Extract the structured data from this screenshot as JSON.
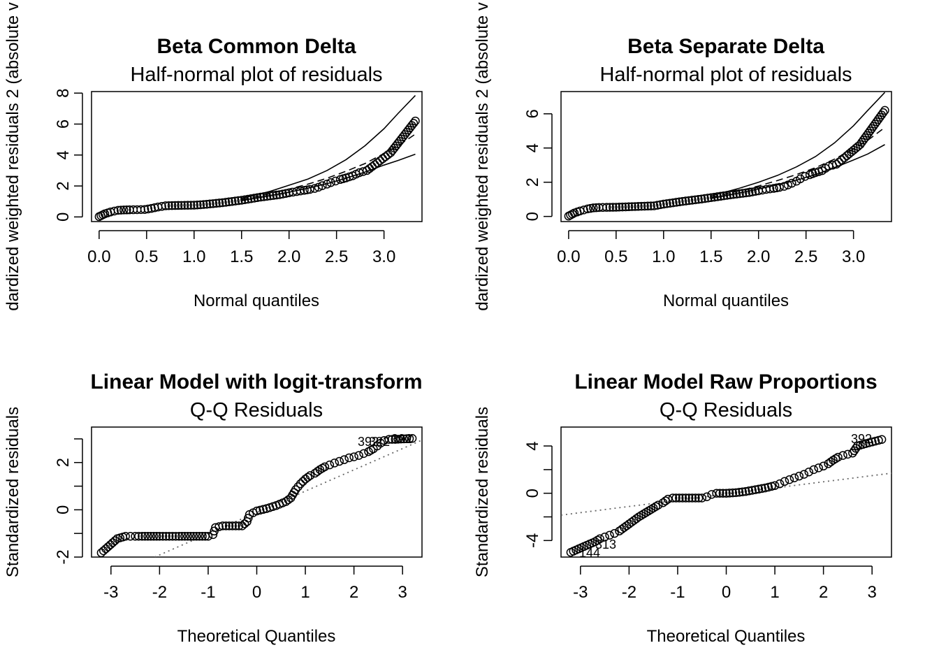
{
  "chart_data": [
    {
      "type": "scatter",
      "title": "Beta Common Delta",
      "subtitle": "Half-normal plot of residuals",
      "xlabel": "Normal quantiles",
      "ylabel": "dardized weighted residuals 2 (absolute v",
      "xlim": [
        -0.08,
        3.4
      ],
      "ylim": [
        -0.3,
        8.1
      ],
      "xticks": [
        0.0,
        0.5,
        1.0,
        1.5,
        2.0,
        2.5,
        3.0
      ],
      "xtick_labels": [
        "0.0",
        "0.5",
        "1.0",
        "1.5",
        "2.0",
        "2.5",
        "3.0"
      ],
      "yticks": [
        0,
        2,
        4,
        6,
        8
      ],
      "ytick_labels": [
        "0",
        "2",
        "4",
        "6",
        "8"
      ],
      "grid": false,
      "points": [
        [
          0.0,
          0.02
        ],
        [
          0.02,
          0.08
        ],
        [
          0.04,
          0.14
        ],
        [
          0.06,
          0.2
        ],
        [
          0.09,
          0.26
        ],
        [
          0.12,
          0.32
        ],
        [
          0.16,
          0.38
        ],
        [
          0.2,
          0.43
        ],
        [
          0.26,
          0.45
        ],
        [
          0.32,
          0.46
        ],
        [
          0.4,
          0.47
        ],
        [
          0.48,
          0.48
        ],
        [
          0.55,
          0.55
        ],
        [
          0.62,
          0.64
        ],
        [
          0.7,
          0.72
        ],
        [
          0.8,
          0.74
        ],
        [
          0.9,
          0.75
        ],
        [
          1.0,
          0.76
        ],
        [
          1.1,
          0.8
        ],
        [
          1.2,
          0.86
        ],
        [
          1.3,
          0.92
        ],
        [
          1.4,
          1.0
        ],
        [
          1.5,
          1.08
        ],
        [
          1.6,
          1.18
        ],
        [
          1.7,
          1.28
        ],
        [
          1.8,
          1.36
        ],
        [
          1.9,
          1.44
        ],
        [
          2.0,
          1.56
        ],
        [
          2.08,
          1.64
        ],
        [
          2.16,
          1.72
        ],
        [
          2.22,
          1.78
        ],
        [
          2.27,
          1.84
        ],
        [
          2.31,
          1.92
        ],
        [
          2.35,
          2.02
        ],
        [
          2.4,
          2.12
        ],
        [
          2.44,
          2.22
        ],
        [
          2.49,
          2.32
        ],
        [
          2.54,
          2.42
        ],
        [
          2.6,
          2.52
        ],
        [
          2.67,
          2.66
        ],
        [
          2.74,
          2.86
        ],
        [
          2.82,
          3.0
        ],
        [
          2.93,
          3.5
        ],
        [
          3.07,
          4.15
        ],
        [
          3.33,
          6.2
        ]
      ],
      "envelope": [
        {
          "name": "upper",
          "style": "solid",
          "x": [
            1.5,
            1.8,
            2.0,
            2.2,
            2.4,
            2.6,
            2.8,
            3.0,
            3.15,
            3.33
          ],
          "y": [
            1.2,
            1.65,
            2.05,
            2.45,
            3.0,
            3.7,
            4.6,
            5.7,
            6.7,
            7.85
          ]
        },
        {
          "name": "mean",
          "style": "dashed",
          "x": [
            1.5,
            1.8,
            2.0,
            2.2,
            2.4,
            2.6,
            2.8,
            3.0,
            3.15,
            3.33
          ],
          "y": [
            1.12,
            1.5,
            1.8,
            2.12,
            2.5,
            2.95,
            3.45,
            4.1,
            4.6,
            5.35
          ]
        },
        {
          "name": "lower",
          "style": "solid",
          "x": [
            1.5,
            1.8,
            2.0,
            2.2,
            2.4,
            2.6,
            2.8,
            3.0,
            3.15,
            3.33
          ],
          "y": [
            1.05,
            1.38,
            1.6,
            1.86,
            2.15,
            2.5,
            2.9,
            3.35,
            3.65,
            4.05
          ]
        }
      ]
    },
    {
      "type": "scatter",
      "title": "Beta Separate Delta",
      "subtitle": "Half-normal plot of residuals",
      "xlabel": "Normal quantiles",
      "ylabel": "dardized weighted residuals 2 (absolute v",
      "xlim": [
        -0.08,
        3.4
      ],
      "ylim": [
        -0.3,
        7.3
      ],
      "xticks": [
        0.0,
        0.5,
        1.0,
        1.5,
        2.0,
        2.5,
        3.0
      ],
      "xtick_labels": [
        "0.0",
        "0.5",
        "1.0",
        "1.5",
        "2.0",
        "2.5",
        "3.0"
      ],
      "yticks": [
        0,
        2,
        4,
        6
      ],
      "ytick_labels": [
        "0",
        "2",
        "4",
        "6"
      ],
      "grid": false,
      "points": [
        [
          0.0,
          0.02
        ],
        [
          0.02,
          0.08
        ],
        [
          0.04,
          0.14
        ],
        [
          0.06,
          0.2
        ],
        [
          0.09,
          0.26
        ],
        [
          0.12,
          0.32
        ],
        [
          0.16,
          0.38
        ],
        [
          0.2,
          0.44
        ],
        [
          0.26,
          0.5
        ],
        [
          0.32,
          0.52
        ],
        [
          0.4,
          0.53
        ],
        [
          0.5,
          0.54
        ],
        [
          0.6,
          0.56
        ],
        [
          0.7,
          0.58
        ],
        [
          0.8,
          0.6
        ],
        [
          0.9,
          0.62
        ],
        [
          1.0,
          0.72
        ],
        [
          1.1,
          0.8
        ],
        [
          1.2,
          0.88
        ],
        [
          1.3,
          0.95
        ],
        [
          1.4,
          1.02
        ],
        [
          1.5,
          1.1
        ],
        [
          1.6,
          1.18
        ],
        [
          1.7,
          1.26
        ],
        [
          1.8,
          1.33
        ],
        [
          1.9,
          1.4
        ],
        [
          2.0,
          1.5
        ],
        [
          2.08,
          1.58
        ],
        [
          2.16,
          1.64
        ],
        [
          2.22,
          1.7
        ],
        [
          2.27,
          1.76
        ],
        [
          2.31,
          1.84
        ],
        [
          2.35,
          1.94
        ],
        [
          2.4,
          2.06
        ],
        [
          2.44,
          2.2
        ],
        [
          2.49,
          2.34
        ],
        [
          2.54,
          2.44
        ],
        [
          2.6,
          2.56
        ],
        [
          2.67,
          2.68
        ],
        [
          2.74,
          2.94
        ],
        [
          2.82,
          3.05
        ],
        [
          2.93,
          3.55
        ],
        [
          3.07,
          4.2
        ],
        [
          3.33,
          6.2
        ]
      ],
      "envelope": [
        {
          "name": "upper",
          "style": "solid",
          "x": [
            1.5,
            1.8,
            2.0,
            2.2,
            2.4,
            2.6,
            2.8,
            3.0,
            3.15,
            3.33
          ],
          "y": [
            1.2,
            1.65,
            2.0,
            2.4,
            2.9,
            3.5,
            4.3,
            5.3,
            6.2,
            7.25
          ]
        },
        {
          "name": "mean",
          "style": "dashed",
          "x": [
            1.5,
            1.8,
            2.0,
            2.2,
            2.4,
            2.6,
            2.8,
            3.0,
            3.15,
            3.33
          ],
          "y": [
            1.12,
            1.5,
            1.78,
            2.1,
            2.45,
            2.85,
            3.35,
            3.95,
            4.45,
            5.2
          ]
        },
        {
          "name": "lower",
          "style": "solid",
          "x": [
            1.5,
            1.8,
            2.0,
            2.2,
            2.4,
            2.6,
            2.8,
            3.0,
            3.15,
            3.33
          ],
          "y": [
            1.05,
            1.38,
            1.6,
            1.85,
            2.12,
            2.45,
            2.85,
            3.3,
            3.65,
            4.2
          ]
        }
      ]
    },
    {
      "type": "scatter",
      "title": "Linear Model with logit-transform",
      "subtitle": "Q-Q Residuals",
      "xlabel": "Theoretical Quantiles",
      "ylabel": "Standardized residuals",
      "xlim": [
        -3.4,
        3.4
      ],
      "ylim": [
        -2.0,
        3.5
      ],
      "xticks": [
        -3,
        -2,
        -1,
        0,
        1,
        2,
        3
      ],
      "xtick_labels": [
        "-3",
        "-2",
        "-1",
        "0",
        "1",
        "2",
        "3"
      ],
      "yticks": [
        -2,
        -1,
        0,
        1,
        2,
        3
      ],
      "ytick_labels": [
        "-2",
        "",
        "0",
        "",
        "2",
        ""
      ],
      "grid": false,
      "points": [
        [
          -3.2,
          -1.82
        ],
        [
          -2.87,
          -1.22
        ],
        [
          -2.7,
          -1.12
        ],
        [
          -2.6,
          -1.12
        ],
        [
          -2.5,
          -1.12
        ],
        [
          -2.43,
          -1.12
        ],
        [
          -2.36,
          -1.12
        ],
        [
          -2.3,
          -1.12
        ],
        [
          -2.0,
          -1.12
        ],
        [
          -1.6,
          -1.12
        ],
        [
          -1.3,
          -1.12
        ],
        [
          -1.0,
          -1.12
        ],
        [
          -0.9,
          -1.05
        ],
        [
          -0.85,
          -0.75
        ],
        [
          -0.7,
          -0.68
        ],
        [
          -0.5,
          -0.68
        ],
        [
          -0.3,
          -0.68
        ],
        [
          -0.2,
          -0.5
        ],
        [
          -0.15,
          -0.2
        ],
        [
          0.0,
          -0.05
        ],
        [
          0.2,
          0.05
        ],
        [
          0.4,
          0.18
        ],
        [
          0.6,
          0.35
        ],
        [
          0.7,
          0.5
        ],
        [
          0.8,
          0.85
        ],
        [
          0.9,
          1.1
        ],
        [
          1.0,
          1.3
        ],
        [
          1.1,
          1.45
        ],
        [
          1.2,
          1.55
        ],
        [
          1.3,
          1.7
        ],
        [
          1.4,
          1.82
        ],
        [
          1.5,
          1.9
        ],
        [
          1.6,
          1.98
        ],
        [
          1.7,
          2.05
        ],
        [
          1.8,
          2.12
        ],
        [
          1.9,
          2.2
        ],
        [
          2.0,
          2.24
        ],
        [
          2.1,
          2.3
        ],
        [
          2.2,
          2.38
        ],
        [
          2.3,
          2.46
        ],
        [
          2.4,
          2.58
        ],
        [
          2.48,
          2.7
        ],
        [
          2.55,
          2.82
        ],
        [
          2.62,
          2.93
        ],
        [
          2.72,
          2.98
        ],
        [
          2.85,
          2.98
        ],
        [
          3.2,
          3.02
        ]
      ],
      "reference_line": {
        "style": "dotted",
        "x": [
          -2.1,
          3.4
        ],
        "y": [
          -2.0,
          2.95
        ]
      },
      "point_labels": [
        "392",
        "322",
        "392"
      ]
    },
    {
      "type": "scatter",
      "title": "Linear Model Raw Proportions",
      "subtitle": "Q-Q Residuals",
      "xlabel": "Theoretical Quantiles",
      "ylabel": "Standardized residuals",
      "xlim": [
        -3.4,
        3.4
      ],
      "ylim": [
        -5.4,
        5.6
      ],
      "xticks": [
        -3,
        -2,
        -1,
        0,
        1,
        2,
        3
      ],
      "xtick_labels": [
        "-3",
        "-2",
        "-1",
        "0",
        "1",
        "2",
        "3"
      ],
      "yticks": [
        -4,
        -2,
        0,
        2,
        4
      ],
      "ytick_labels": [
        "-4",
        "",
        "0",
        "",
        "4"
      ],
      "grid": false,
      "points": [
        [
          -3.2,
          -5.0
        ],
        [
          -2.87,
          -4.4
        ],
        [
          -2.7,
          -4.1
        ],
        [
          -2.6,
          -3.85
        ],
        [
          -2.5,
          -3.7
        ],
        [
          -2.4,
          -3.55
        ],
        [
          -2.3,
          -3.4
        ],
        [
          -2.2,
          -3.2
        ],
        [
          -2.1,
          -2.9
        ],
        [
          -2.0,
          -2.6
        ],
        [
          -1.9,
          -2.3
        ],
        [
          -1.8,
          -2.0
        ],
        [
          -1.7,
          -1.75
        ],
        [
          -1.6,
          -1.5
        ],
        [
          -1.5,
          -1.25
        ],
        [
          -1.4,
          -1.0
        ],
        [
          -1.3,
          -0.8
        ],
        [
          -1.2,
          -0.5
        ],
        [
          -1.1,
          -0.4
        ],
        [
          -0.9,
          -0.4
        ],
        [
          -0.7,
          -0.4
        ],
        [
          -0.5,
          -0.4
        ],
        [
          -0.4,
          -0.3
        ],
        [
          -0.3,
          -0.1
        ],
        [
          -0.2,
          0.0
        ],
        [
          0.0,
          0.0
        ],
        [
          0.2,
          0.05
        ],
        [
          0.4,
          0.15
        ],
        [
          0.6,
          0.3
        ],
        [
          0.8,
          0.45
        ],
        [
          1.0,
          0.65
        ],
        [
          1.1,
          0.8
        ],
        [
          1.2,
          1.0
        ],
        [
          1.3,
          1.15
        ],
        [
          1.4,
          1.3
        ],
        [
          1.5,
          1.45
        ],
        [
          1.6,
          1.6
        ],
        [
          1.7,
          1.8
        ],
        [
          1.8,
          2.0
        ],
        [
          1.9,
          2.15
        ],
        [
          2.0,
          2.3
        ],
        [
          2.1,
          2.5
        ],
        [
          2.2,
          2.8
        ],
        [
          2.3,
          3.05
        ],
        [
          2.4,
          3.2
        ],
        [
          2.5,
          3.3
        ],
        [
          2.6,
          3.4
        ],
        [
          2.7,
          4.0
        ],
        [
          2.87,
          4.2
        ],
        [
          3.2,
          4.55
        ]
      ],
      "reference_line": {
        "style": "dotted",
        "x": [
          -3.4,
          3.4
        ],
        "y": [
          -1.85,
          1.7
        ]
      },
      "point_labels": [
        "392",
        "313",
        "144"
      ]
    }
  ]
}
